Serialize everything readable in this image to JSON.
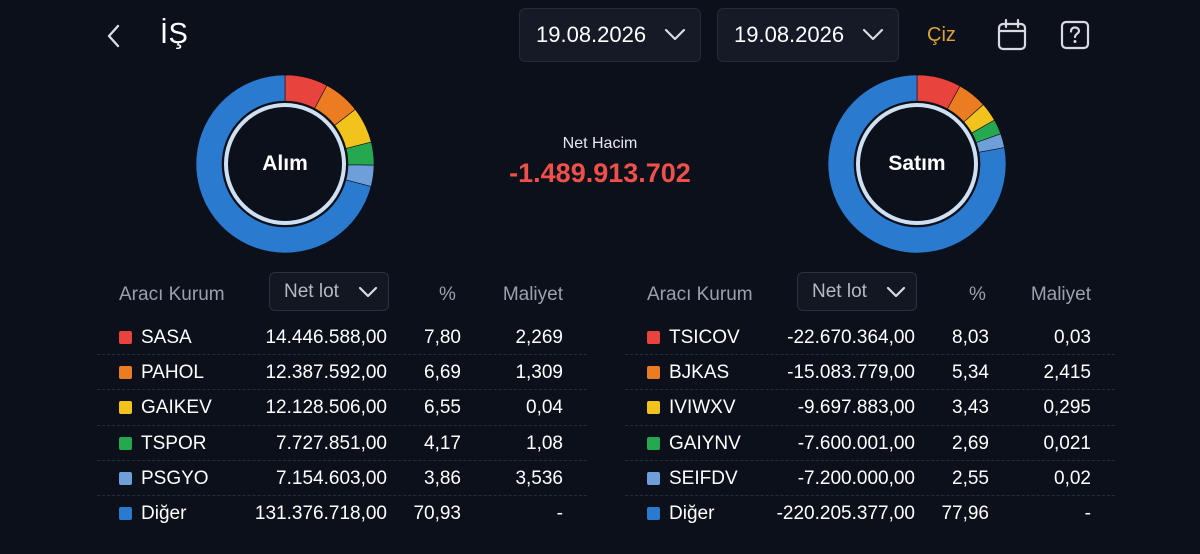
{
  "header": {
    "title": "İŞ",
    "date_from": "19.08.2026",
    "date_to": "19.08.2026",
    "draw_label": "Çiz",
    "accent_color": "#e0a13a"
  },
  "summary": {
    "net_volume_label": "Net Hacim",
    "net_volume_value": "-1.489.913.702",
    "negative_color": "#f0504a"
  },
  "buy": {
    "donut_label": "Alım",
    "columns": {
      "broker": "Aracı Kurum",
      "lot_select": "Net lot",
      "pct": "%",
      "cost": "Maliyet"
    },
    "rows": [
      {
        "name": "SASA",
        "lot": "14.446.588,00",
        "pct": "7,80",
        "cost": "2,269",
        "color": "#e8433c"
      },
      {
        "name": "PAHOL",
        "lot": "12.387.592,00",
        "pct": "6,69",
        "cost": "1,309",
        "color": "#eb7c22"
      },
      {
        "name": "GAIKEV",
        "lot": "12.128.506,00",
        "pct": "6,55",
        "cost": "0,04",
        "color": "#f2c31c"
      },
      {
        "name": "TSPOR",
        "lot": "7.727.851,00",
        "pct": "4,17",
        "cost": "1,08",
        "color": "#25a84f"
      },
      {
        "name": "PSGYO",
        "lot": "7.154.603,00",
        "pct": "3,86",
        "cost": "3,536",
        "color": "#6f9fd8"
      },
      {
        "name": "Diğer",
        "lot": "131.376.718,00",
        "pct": "70,93",
        "cost": "-",
        "color": "#2a7ad0"
      }
    ]
  },
  "sell": {
    "donut_label": "Satım",
    "columns": {
      "broker": "Aracı Kurum",
      "lot_select": "Net lot",
      "pct": "%",
      "cost": "Maliyet"
    },
    "rows": [
      {
        "name": "TSICOV",
        "lot": "-22.670.364,00",
        "pct": "8,03",
        "cost": "0,03",
        "color": "#e8433c"
      },
      {
        "name": "BJKAS",
        "lot": "-15.083.779,00",
        "pct": "5,34",
        "cost": "2,415",
        "color": "#eb7c22"
      },
      {
        "name": "IVIWXV",
        "lot": "-9.697.883,00",
        "pct": "3,43",
        "cost": "0,295",
        "color": "#f2c31c"
      },
      {
        "name": "GAIYNV",
        "lot": "-7.600.001,00",
        "pct": "2,69",
        "cost": "0,021",
        "color": "#25a84f"
      },
      {
        "name": "SEIFDV",
        "lot": "-7.200.000,00",
        "pct": "2,55",
        "cost": "0,02",
        "color": "#6f9fd8"
      },
      {
        "name": "Diğer",
        "lot": "-220.205.377,00",
        "pct": "77,96",
        "cost": "-",
        "color": "#2a7ad0"
      }
    ]
  },
  "icons": {
    "back": "chevron-left-icon",
    "dropdown": "chevron-down-icon",
    "calendar": "calendar-icon",
    "help": "help-icon"
  }
}
